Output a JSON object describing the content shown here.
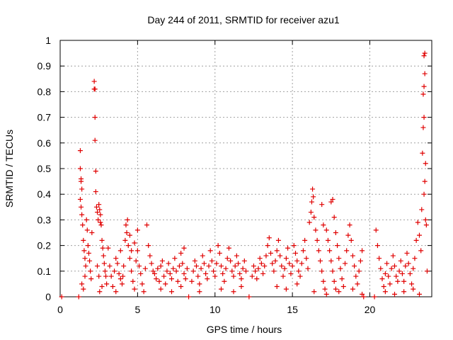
{
  "chart_data": {
    "type": "scatter",
    "title": "Day 244 of 2011, SRMTID for receiver azu1",
    "xlabel": "GPS time / hours",
    "ylabel": "SRMTID / TECUs",
    "xlim": [
      0,
      24
    ],
    "ylim": [
      0,
      1
    ],
    "x_ticks": [
      "0",
      "5",
      "10",
      "15",
      "20"
    ],
    "y_ticks": [
      "0",
      "0.1",
      "0.2",
      "0.3",
      "0.4",
      "0.5",
      "0.6",
      "0.7",
      "0.8",
      "0.9",
      "1"
    ],
    "grid": true,
    "marker": "plus",
    "series": [
      {
        "name": "SRMTID",
        "color": "#e00000",
        "points": [
          [
            0.1,
            0.0
          ],
          [
            1.2,
            0.0
          ],
          [
            8.3,
            0.0
          ],
          [
            12.2,
            0.0
          ],
          [
            19.6,
            0.0
          ],
          [
            20.3,
            0.0
          ],
          [
            1.3,
            0.57
          ],
          [
            1.3,
            0.5
          ],
          [
            1.35,
            0.46
          ],
          [
            1.35,
            0.45
          ],
          [
            1.4,
            0.42
          ],
          [
            1.3,
            0.38
          ],
          [
            1.35,
            0.35
          ],
          [
            1.4,
            0.32
          ],
          [
            1.45,
            0.28
          ],
          [
            1.5,
            0.22
          ],
          [
            1.55,
            0.18
          ],
          [
            1.6,
            0.15
          ],
          [
            1.65,
            0.12
          ],
          [
            1.4,
            0.05
          ],
          [
            1.5,
            0.03
          ],
          [
            1.6,
            0.08
          ],
          [
            1.7,
            0.3
          ],
          [
            1.75,
            0.26
          ],
          [
            1.8,
            0.2
          ],
          [
            1.85,
            0.17
          ],
          [
            1.9,
            0.14
          ],
          [
            1.95,
            0.1
          ],
          [
            2.0,
            0.07
          ],
          [
            2.05,
            0.25
          ],
          [
            2.2,
            0.84
          ],
          [
            2.25,
            0.81
          ],
          [
            2.2,
            0.81
          ],
          [
            2.25,
            0.7
          ],
          [
            2.25,
            0.61
          ],
          [
            2.3,
            0.49
          ],
          [
            2.3,
            0.41
          ],
          [
            2.35,
            0.35
          ],
          [
            2.4,
            0.33
          ],
          [
            2.45,
            0.3
          ],
          [
            2.5,
            0.36
          ],
          [
            2.55,
            0.34
          ],
          [
            2.6,
            0.29
          ],
          [
            2.6,
            0.32
          ],
          [
            2.65,
            0.28
          ],
          [
            2.7,
            0.22
          ],
          [
            2.75,
            0.19
          ],
          [
            2.8,
            0.16
          ],
          [
            2.85,
            0.13
          ],
          [
            2.9,
            0.1
          ],
          [
            2.95,
            0.08
          ],
          [
            3.0,
            0.05
          ],
          [
            2.4,
            0.12
          ],
          [
            2.5,
            0.08
          ],
          [
            2.55,
            0.02
          ],
          [
            2.7,
            0.04
          ],
          [
            3.1,
            0.19
          ],
          [
            3.2,
            0.12
          ],
          [
            3.3,
            0.08
          ],
          [
            3.4,
            0.04
          ],
          [
            3.5,
            0.1
          ],
          [
            3.6,
            0.15
          ],
          [
            3.7,
            0.13
          ],
          [
            3.8,
            0.09
          ],
          [
            3.9,
            0.07
          ],
          [
            4.0,
            0.05
          ],
          [
            4.1,
            0.12
          ],
          [
            4.2,
            0.22
          ],
          [
            4.25,
            0.28
          ],
          [
            4.3,
            0.25
          ],
          [
            4.35,
            0.3
          ],
          [
            4.4,
            0.2
          ],
          [
            4.5,
            0.15
          ],
          [
            4.6,
            0.1
          ],
          [
            4.7,
            0.06
          ],
          [
            4.8,
            0.03
          ],
          [
            4.9,
            0.14
          ],
          [
            5.0,
            0.18
          ],
          [
            5.1,
            0.12
          ],
          [
            5.2,
            0.09
          ],
          [
            5.3,
            0.05
          ],
          [
            5.4,
            0.02
          ],
          [
            5.5,
            0.11
          ],
          [
            5.6,
            0.28
          ],
          [
            5.7,
            0.2
          ],
          [
            5.8,
            0.16
          ],
          [
            5.9,
            0.13
          ],
          [
            6.0,
            0.1
          ],
          [
            5.0,
            0.26
          ],
          [
            4.8,
            0.21
          ],
          [
            4.6,
            0.18
          ],
          [
            4.5,
            0.24
          ],
          [
            3.6,
            0.02
          ],
          [
            3.9,
            0.18
          ],
          [
            4.05,
            0.08
          ],
          [
            6.1,
            0.09
          ],
          [
            6.2,
            0.07
          ],
          [
            6.3,
            0.11
          ],
          [
            6.4,
            0.06
          ],
          [
            6.5,
            0.12
          ],
          [
            6.6,
            0.14
          ],
          [
            6.7,
            0.08
          ],
          [
            6.8,
            0.05
          ],
          [
            6.9,
            0.1
          ],
          [
            7.0,
            0.13
          ],
          [
            7.1,
            0.09
          ],
          [
            7.2,
            0.07
          ],
          [
            7.3,
            0.11
          ],
          [
            7.4,
            0.15
          ],
          [
            7.5,
            0.1
          ],
          [
            7.6,
            0.06
          ],
          [
            7.7,
            0.12
          ],
          [
            7.8,
            0.17
          ],
          [
            7.9,
            0.13
          ],
          [
            8.0,
            0.09
          ],
          [
            8.1,
            0.07
          ],
          [
            8.2,
            0.11
          ],
          [
            6.5,
            0.03
          ],
          [
            7.2,
            0.02
          ],
          [
            7.8,
            0.04
          ],
          [
            8.0,
            0.19
          ],
          [
            8.5,
            0.06
          ],
          [
            8.6,
            0.1
          ],
          [
            8.7,
            0.14
          ],
          [
            8.8,
            0.12
          ],
          [
            8.9,
            0.08
          ],
          [
            9.0,
            0.05
          ],
          [
            9.1,
            0.11
          ],
          [
            9.2,
            0.16
          ],
          [
            9.3,
            0.13
          ],
          [
            9.4,
            0.09
          ],
          [
            9.5,
            0.07
          ],
          [
            9.6,
            0.12
          ],
          [
            9.7,
            0.18
          ],
          [
            9.8,
            0.14
          ],
          [
            9.9,
            0.1
          ],
          [
            10.0,
            0.08
          ],
          [
            10.1,
            0.13
          ],
          [
            10.2,
            0.2
          ],
          [
            10.3,
            0.17
          ],
          [
            10.4,
            0.12
          ],
          [
            10.5,
            0.09
          ],
          [
            10.6,
            0.06
          ],
          [
            10.7,
            0.11
          ],
          [
            10.8,
            0.15
          ],
          [
            10.9,
            0.19
          ],
          [
            11.0,
            0.14
          ],
          [
            11.1,
            0.1
          ],
          [
            11.2,
            0.08
          ],
          [
            11.3,
            0.12
          ],
          [
            11.4,
            0.16
          ],
          [
            11.5,
            0.13
          ],
          [
            11.6,
            0.09
          ],
          [
            11.7,
            0.07
          ],
          [
            11.8,
            0.11
          ],
          [
            11.9,
            0.14
          ],
          [
            12.0,
            0.1
          ],
          [
            9.0,
            0.02
          ],
          [
            10.4,
            0.03
          ],
          [
            11.2,
            0.02
          ],
          [
            11.7,
            0.04
          ],
          [
            12.4,
            0.08
          ],
          [
            12.5,
            0.12
          ],
          [
            12.6,
            0.1
          ],
          [
            12.7,
            0.07
          ],
          [
            12.8,
            0.11
          ],
          [
            12.9,
            0.15
          ],
          [
            13.0,
            0.13
          ],
          [
            13.1,
            0.09
          ],
          [
            13.2,
            0.12
          ],
          [
            13.3,
            0.16
          ],
          [
            13.4,
            0.2
          ],
          [
            13.5,
            0.23
          ],
          [
            13.6,
            0.17
          ],
          [
            13.7,
            0.13
          ],
          [
            13.8,
            0.1
          ],
          [
            13.9,
            0.14
          ],
          [
            14.0,
            0.18
          ],
          [
            14.1,
            0.22
          ],
          [
            14.2,
            0.16
          ],
          [
            14.3,
            0.12
          ],
          [
            14.4,
            0.08
          ],
          [
            14.5,
            0.11
          ],
          [
            14.6,
            0.15
          ],
          [
            14.7,
            0.19
          ],
          [
            14.8,
            0.13
          ],
          [
            14.9,
            0.09
          ],
          [
            15.0,
            0.12
          ],
          [
            15.1,
            0.2
          ],
          [
            15.2,
            0.17
          ],
          [
            15.3,
            0.14
          ],
          [
            15.4,
            0.1
          ],
          [
            15.5,
            0.08
          ],
          [
            15.6,
            0.13
          ],
          [
            15.7,
            0.18
          ],
          [
            15.8,
            0.22
          ],
          [
            15.9,
            0.15
          ],
          [
            16.0,
            0.11
          ],
          [
            14.0,
            0.04
          ],
          [
            14.6,
            0.03
          ],
          [
            15.3,
            0.05
          ],
          [
            16.1,
            0.29
          ],
          [
            16.2,
            0.33
          ],
          [
            16.25,
            0.37
          ],
          [
            16.3,
            0.42
          ],
          [
            16.35,
            0.39
          ],
          [
            16.4,
            0.31
          ],
          [
            16.5,
            0.26
          ],
          [
            16.6,
            0.22
          ],
          [
            16.7,
            0.18
          ],
          [
            16.8,
            0.14
          ],
          [
            16.9,
            0.1
          ],
          [
            17.0,
            0.06
          ],
          [
            17.1,
            0.03
          ],
          [
            16.9,
            0.36
          ],
          [
            17.0,
            0.28
          ],
          [
            17.2,
            0.26
          ],
          [
            17.3,
            0.22
          ],
          [
            17.4,
            0.18
          ],
          [
            17.5,
            0.14
          ],
          [
            17.6,
            0.1
          ],
          [
            17.7,
            0.06
          ],
          [
            17.8,
            0.03
          ],
          [
            17.5,
            0.37
          ],
          [
            17.6,
            0.38
          ],
          [
            17.7,
            0.31
          ],
          [
            17.8,
            0.25
          ],
          [
            17.9,
            0.2
          ],
          [
            18.0,
            0.15
          ],
          [
            18.1,
            0.11
          ],
          [
            18.2,
            0.07
          ],
          [
            18.3,
            0.04
          ],
          [
            18.4,
            0.13
          ],
          [
            18.5,
            0.18
          ],
          [
            18.6,
            0.24
          ],
          [
            18.7,
            0.28
          ],
          [
            18.8,
            0.22
          ],
          [
            18.9,
            0.16
          ],
          [
            19.0,
            0.12
          ],
          [
            19.1,
            0.08
          ],
          [
            19.2,
            0.05
          ],
          [
            19.3,
            0.1
          ],
          [
            19.4,
            0.14
          ],
          [
            19.5,
            0.18
          ],
          [
            19.5,
            0.01
          ],
          [
            16.4,
            0.02
          ],
          [
            17.2,
            0.01
          ],
          [
            18.0,
            0.02
          ],
          [
            18.9,
            0.03
          ],
          [
            20.4,
            0.26
          ],
          [
            20.5,
            0.2
          ],
          [
            20.6,
            0.15
          ],
          [
            20.7,
            0.11
          ],
          [
            20.8,
            0.07
          ],
          [
            20.9,
            0.04
          ],
          [
            21.0,
            0.09
          ],
          [
            21.1,
            0.13
          ],
          [
            21.2,
            0.08
          ],
          [
            21.3,
            0.05
          ],
          [
            21.4,
            0.11
          ],
          [
            21.5,
            0.16
          ],
          [
            21.6,
            0.12
          ],
          [
            21.7,
            0.08
          ],
          [
            21.8,
            0.06
          ],
          [
            21.9,
            0.1
          ],
          [
            22.0,
            0.14
          ],
          [
            22.1,
            0.09
          ],
          [
            22.2,
            0.06
          ],
          [
            22.3,
            0.12
          ],
          [
            22.4,
            0.17
          ],
          [
            22.5,
            0.13
          ],
          [
            22.6,
            0.09
          ],
          [
            22.7,
            0.05
          ],
          [
            22.8,
            0.11
          ],
          [
            22.9,
            0.15
          ],
          [
            23.0,
            0.22
          ],
          [
            23.1,
            0.29
          ],
          [
            23.2,
            0.24
          ],
          [
            23.3,
            0.18
          ],
          [
            23.35,
            0.34
          ],
          [
            23.4,
            0.56
          ],
          [
            23.45,
            0.66
          ],
          [
            23.5,
            0.7
          ],
          [
            23.45,
            0.79
          ],
          [
            23.5,
            0.82
          ],
          [
            23.55,
            0.87
          ],
          [
            23.5,
            0.94
          ],
          [
            23.55,
            0.95
          ],
          [
            23.55,
            0.45
          ],
          [
            23.5,
            0.4
          ],
          [
            23.6,
            0.52
          ],
          [
            23.6,
            0.3
          ],
          [
            23.65,
            0.28
          ],
          [
            23.7,
            0.1
          ],
          [
            21.0,
            0.02
          ],
          [
            21.6,
            0.01
          ],
          [
            22.2,
            0.02
          ],
          [
            22.8,
            0.03
          ],
          [
            23.2,
            0.01
          ]
        ]
      }
    ]
  }
}
